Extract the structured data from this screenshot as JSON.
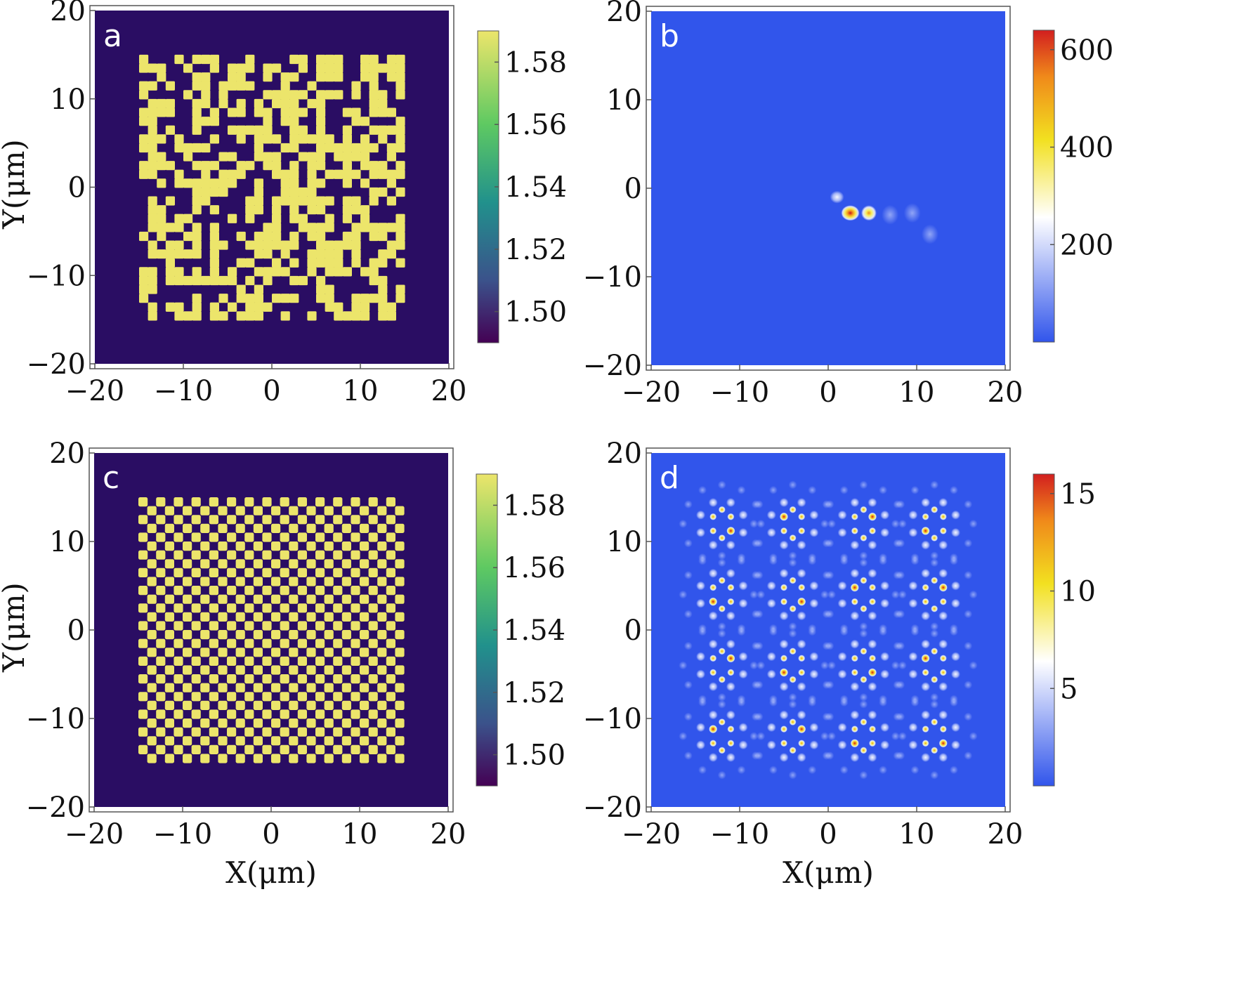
{
  "chart_data": [
    {
      "type": "heatmap",
      "panel_label": "a",
      "content": "binary random refractive-index pattern",
      "pattern_seed": 7,
      "pattern_grid": 30,
      "xlabel": "",
      "ylabel": "Y(μm)",
      "xlim": [
        -20,
        20
      ],
      "ylim": [
        -20,
        20
      ],
      "xticks": [
        "−20",
        "−10",
        "0",
        "10",
        "20"
      ],
      "yticks": [
        "20",
        "10",
        "0",
        "−10",
        "−20"
      ],
      "pattern_extent": [
        -15,
        15
      ],
      "values": [
        1.49,
        1.59
      ],
      "colorbar": {
        "colormap": "viridis",
        "range": [
          1.49,
          1.59
        ],
        "ticks": [
          "1.58",
          "1.56",
          "1.54",
          "1.52",
          "1.50"
        ],
        "tick_values": [
          1.58,
          1.56,
          1.54,
          1.52,
          1.5
        ]
      },
      "colors": {
        "background": "#2a0d63",
        "pattern": "#ece56b"
      }
    },
    {
      "type": "heatmap",
      "panel_label": "b",
      "content": "localized intensity",
      "xlabel": "",
      "ylabel": "",
      "xlim": [
        -20,
        20
      ],
      "ylim": [
        -20,
        20
      ],
      "xticks": [
        "−20",
        "−10",
        "0",
        "10",
        "20"
      ],
      "yticks": [
        "20",
        "10",
        "0",
        "−10",
        "−20"
      ],
      "peaks": [
        {
          "x": 2.5,
          "y": -2.8,
          "peak": 620
        },
        {
          "x": 4.6,
          "y": -2.8,
          "peak": 430
        },
        {
          "x": 1.0,
          "y": -1.0,
          "peak": 120
        },
        {
          "x": 11.5,
          "y": -5.2,
          "peak": 70
        },
        {
          "x": 9.5,
          "y": -2.8,
          "peak": 50
        },
        {
          "x": 7.0,
          "y": -3.0,
          "peak": 60
        }
      ],
      "colorbar": {
        "colormap": "blue-white-yellow-red",
        "range": [
          0,
          640
        ],
        "ticks": [
          "600",
          "400",
          "200"
        ],
        "tick_values": [
          600,
          400,
          200
        ]
      },
      "colors": {
        "background": "#3155eb"
      }
    },
    {
      "type": "heatmap",
      "panel_label": "c",
      "content": "periodic checkerboard refractive-index pattern",
      "pattern_grid": 30,
      "xlabel": "X(μm)",
      "ylabel": "Y(μm)",
      "xlim": [
        -20,
        20
      ],
      "ylim": [
        -20,
        20
      ],
      "xticks": [
        "−20",
        "−10",
        "0",
        "10",
        "20"
      ],
      "yticks": [
        "20",
        "10",
        "0",
        "−10",
        "−20"
      ],
      "pattern_extent": [
        -15,
        15
      ],
      "values": [
        1.49,
        1.59
      ],
      "colorbar": {
        "colormap": "viridis",
        "range": [
          1.49,
          1.59
        ],
        "ticks": [
          "1.58",
          "1.56",
          "1.54",
          "1.52",
          "1.50"
        ],
        "tick_values": [
          1.58,
          1.56,
          1.54,
          1.52,
          1.5
        ]
      },
      "colors": {
        "background": "#2a0d63",
        "pattern": "#ece56b"
      }
    },
    {
      "type": "heatmap",
      "panel_label": "d",
      "content": "4x4 array of periodic intensity spots",
      "xlabel": "X(μm)",
      "ylabel": "",
      "xlim": [
        -20,
        20
      ],
      "ylim": [
        -20,
        20
      ],
      "xticks": [
        "−20",
        "−10",
        "0",
        "10",
        "20"
      ],
      "yticks": [
        "20",
        "10",
        "0",
        "−10",
        "−20"
      ],
      "cluster_centers": [
        -12,
        -4,
        4,
        12
      ],
      "colorbar": {
        "colormap": "blue-white-yellow-red",
        "range": [
          0,
          16
        ],
        "ticks": [
          "15",
          "10",
          "5"
        ],
        "tick_values": [
          15,
          10,
          5
        ]
      },
      "colors": {
        "background": "#3155eb"
      }
    }
  ]
}
